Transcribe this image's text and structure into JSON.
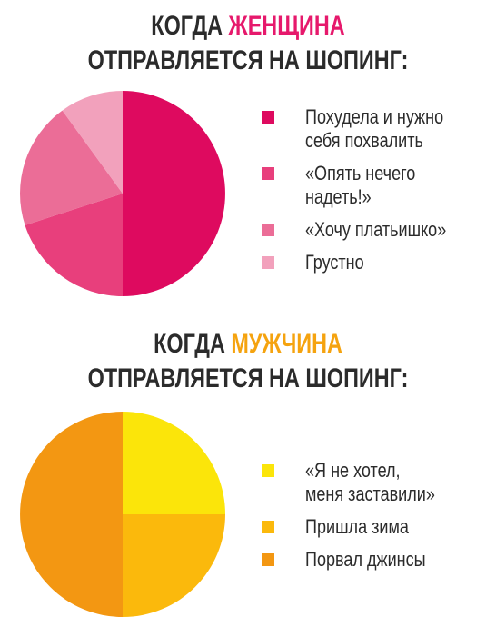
{
  "women": {
    "title_prefix": "КОГДА ",
    "title_highlight": "ЖЕНЩИНА",
    "title_line2": "ОТПРАВЛЯЕТСЯ НА ШОПИНГ:",
    "highlight_color": "#e6196c"
  },
  "men": {
    "title_prefix": "КОГДА ",
    "title_highlight": "МУЖЧИНА",
    "title_line2": "ОТПРАВЛЯЕТСЯ НА ШОПИНГ:",
    "highlight_color": "#f5a30f"
  },
  "chart_data": [
    {
      "type": "pie",
      "title": "КОГДА ЖЕНЩИНА ОТПРАВЛЯЕТСЯ НА ШОПИНГ:",
      "labels": [
        "Похудела и нужно\nсебя похвалить",
        "«Опять нечего\nнадеть!»",
        "«Хочу платьишко»",
        "Грустно"
      ],
      "values": [
        50,
        20,
        20,
        10
      ],
      "colors": [
        "#de0a5f",
        "#e83f7c",
        "#eb6d97",
        "#f2a1bc"
      ],
      "legend_position": "right"
    },
    {
      "type": "pie",
      "title": "КОГДА МУЖЧИНА ОТПРАВЛЯЕТСЯ НА ШОПИНГ:",
      "labels": [
        "«Я не хотел,\nменя заставили»",
        "Пришла зима",
        "Порвал джинсы"
      ],
      "values": [
        25,
        25,
        50
      ],
      "colors": [
        "#fbe50a",
        "#fbb90c",
        "#f39712"
      ],
      "legend_position": "right"
    }
  ]
}
